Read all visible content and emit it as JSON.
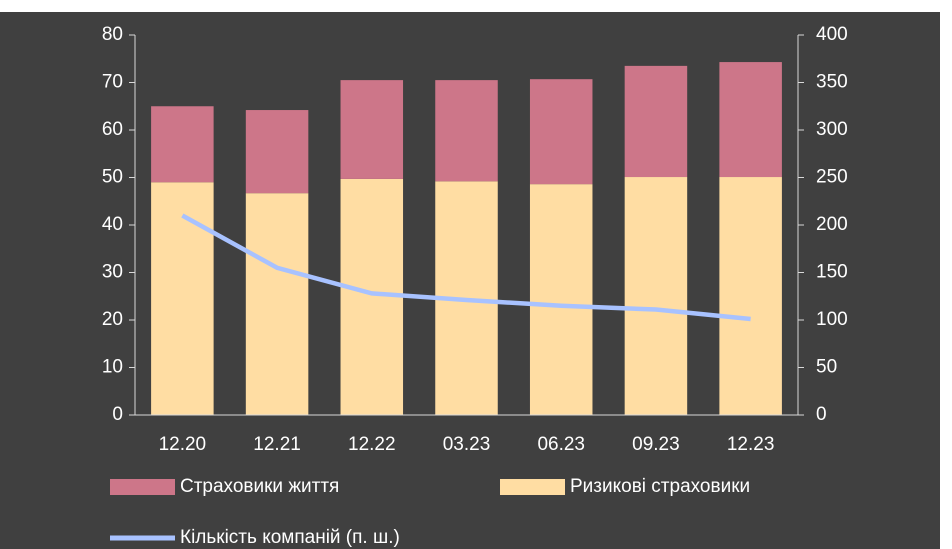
{
  "chart_data": {
    "type": "bar",
    "stacked": true,
    "categories": [
      "12.20",
      "12.21",
      "12.22",
      "03.23",
      "06.23",
      "09.23",
      "12.23"
    ],
    "series": [
      {
        "name": "Страховики життя",
        "color": "#cd7689",
        "values": [
          16,
          17.5,
          20.8,
          21.3,
          22.1,
          23.4,
          24.2
        ]
      },
      {
        "name": "Ризикові страховики",
        "color": "#ffdda3",
        "values": [
          49,
          46.7,
          49.7,
          49.2,
          48.6,
          50.1,
          50.1
        ]
      },
      {
        "name": "Кількість компаній (п. ш.)",
        "type": "line",
        "axis": "y2",
        "color": "#a8c2ff",
        "values": [
          210,
          155,
          128,
          121,
          115,
          111,
          101
        ]
      }
    ],
    "ylim": [
      0,
      80
    ],
    "yticks": [
      0,
      10,
      20,
      30,
      40,
      50,
      60,
      70,
      80
    ],
    "y2lim": [
      0,
      400
    ],
    "y2ticks": [
      0,
      50,
      100,
      150,
      200,
      250,
      300,
      350,
      400
    ],
    "grid": false
  }
}
